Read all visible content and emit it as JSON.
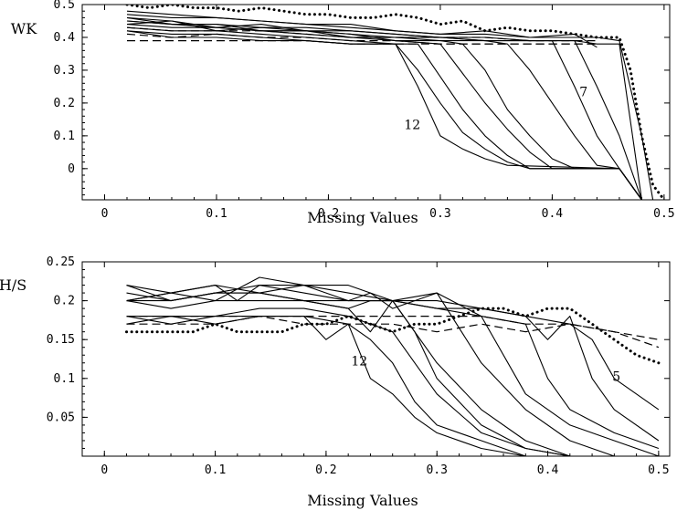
{
  "chart_data": [
    {
      "type": "line",
      "ylabel": "WK",
      "xlabel": "Missing Values",
      "xlim": [
        -0.02,
        0.505
      ],
      "ylim": [
        -0.095,
        0.5
      ],
      "xticks": [
        0,
        0.1,
        0.2,
        0.3,
        0.4,
        0.5
      ],
      "xtick_labels": [
        "0",
        "0.1",
        "0.2",
        "0.3",
        "0.4",
        "0.5"
      ],
      "yticks": [
        0,
        0.1,
        0.2,
        0.3,
        0.4,
        0.5
      ],
      "ytick_labels": [
        "0",
        "0.1",
        "0.2",
        "0.3",
        "0.4",
        "0.5"
      ],
      "annotations": [
        {
          "text": "12",
          "x": 0.275,
          "y": 0.12
        },
        {
          "text": "7",
          "x": 0.428,
          "y": 0.22
        }
      ],
      "series": [
        {
          "style": "dotted",
          "x": [
            0.02,
            0.04,
            0.06,
            0.08,
            0.1,
            0.12,
            0.14,
            0.16,
            0.18,
            0.2,
            0.22,
            0.24,
            0.26,
            0.28,
            0.3,
            0.32,
            0.34,
            0.36,
            0.38,
            0.4,
            0.42,
            0.44,
            0.46,
            0.47,
            0.48,
            0.49,
            0.5
          ],
          "y": [
            0.5,
            0.49,
            0.5,
            0.49,
            0.49,
            0.48,
            0.49,
            0.48,
            0.47,
            0.47,
            0.46,
            0.46,
            0.47,
            0.46,
            0.44,
            0.45,
            0.42,
            0.43,
            0.42,
            0.42,
            0.41,
            0.4,
            0.4,
            0.3,
            0.1,
            -0.05,
            -0.095
          ]
        },
        {
          "style": "dashed",
          "x": [
            0.02,
            0.06,
            0.1,
            0.14,
            0.18,
            0.22,
            0.26,
            0.3,
            0.34,
            0.38,
            0.42,
            0.44
          ],
          "y": [
            0.43,
            0.42,
            0.42,
            0.42,
            0.41,
            0.4,
            0.4,
            0.4,
            0.4,
            0.39,
            0.39,
            0.39
          ]
        },
        {
          "style": "dashed",
          "x": [
            0.02,
            0.06,
            0.1,
            0.14,
            0.18,
            0.22,
            0.26,
            0.3,
            0.34,
            0.38,
            0.42,
            0.44
          ],
          "y": [
            0.41,
            0.4,
            0.41,
            0.4,
            0.4,
            0.39,
            0.39,
            0.38,
            0.38,
            0.38,
            0.38,
            0.38
          ]
        },
        {
          "style": "dashed",
          "x": [
            0.02,
            0.06,
            0.1,
            0.14,
            0.18,
            0.22,
            0.26,
            0.3,
            0.34,
            0.38,
            0.42,
            0.44
          ],
          "y": [
            0.39,
            0.39,
            0.39,
            0.39,
            0.39,
            0.38,
            0.38,
            0.38,
            0.38,
            0.38,
            0.38,
            0.38
          ]
        },
        {
          "style": "solid",
          "x": [
            0.02,
            0.06,
            0.1,
            0.14,
            0.18,
            0.22,
            0.26,
            0.3,
            0.34,
            0.38,
            0.42,
            0.44,
            0.46,
            0.48,
            0.49
          ],
          "y": [
            0.47,
            0.46,
            0.46,
            0.45,
            0.44,
            0.43,
            0.42,
            0.41,
            0.41,
            0.4,
            0.4,
            0.4,
            0.39,
            0.1,
            -0.095
          ]
        },
        {
          "style": "solid",
          "x": [
            0.02,
            0.06,
            0.1,
            0.14,
            0.18,
            0.22,
            0.26,
            0.3,
            0.34,
            0.38,
            0.42,
            0.44,
            0.46,
            0.48
          ],
          "y": [
            0.45,
            0.44,
            0.44,
            0.43,
            0.43,
            0.42,
            0.41,
            0.4,
            0.4,
            0.39,
            0.39,
            0.38,
            0.38,
            -0.095
          ]
        },
        {
          "style": "solid",
          "x": [
            0.02,
            0.06,
            0.1,
            0.14,
            0.18,
            0.22,
            0.26,
            0.3,
            0.34,
            0.38,
            0.42,
            0.44
          ],
          "y": [
            0.48,
            0.47,
            0.46,
            0.45,
            0.44,
            0.44,
            0.42,
            0.41,
            0.42,
            0.4,
            0.41,
            0.37
          ]
        },
        {
          "style": "solid",
          "x": [
            0.02,
            0.06,
            0.1,
            0.14,
            0.18,
            0.22,
            0.26,
            0.3,
            0.34,
            0.38,
            0.42,
            0.44,
            0.46,
            0.48
          ],
          "y": [
            0.46,
            0.45,
            0.43,
            0.44,
            0.42,
            0.42,
            0.41,
            0.4,
            0.39,
            0.39,
            0.39,
            0.25,
            0.1,
            -0.095
          ]
        },
        {
          "style": "solid",
          "x": [
            0.02,
            0.06,
            0.1,
            0.14,
            0.18,
            0.22,
            0.26,
            0.3,
            0.34,
            0.38,
            0.4,
            0.42,
            0.44,
            0.46,
            0.48
          ],
          "y": [
            0.44,
            0.45,
            0.42,
            0.43,
            0.42,
            0.41,
            0.4,
            0.4,
            0.39,
            0.39,
            0.39,
            0.25,
            0.1,
            0,
            -0.095
          ]
        },
        {
          "style": "solid",
          "x": [
            0.02,
            0.06,
            0.1,
            0.14,
            0.18,
            0.22,
            0.26,
            0.3,
            0.34,
            0.36,
            0.38,
            0.4,
            0.42,
            0.44,
            0.46,
            0.48
          ],
          "y": [
            0.46,
            0.44,
            0.43,
            0.42,
            0.42,
            0.4,
            0.4,
            0.39,
            0.39,
            0.38,
            0.3,
            0.2,
            0.1,
            0.01,
            0,
            -0.095
          ]
        },
        {
          "style": "solid",
          "x": [
            0.02,
            0.06,
            0.1,
            0.14,
            0.18,
            0.22,
            0.26,
            0.3,
            0.32,
            0.34,
            0.36,
            0.38,
            0.4,
            0.42,
            0.46,
            0.48
          ],
          "y": [
            0.45,
            0.44,
            0.44,
            0.42,
            0.42,
            0.41,
            0.39,
            0.39,
            0.38,
            0.3,
            0.18,
            0.1,
            0.03,
            0,
            0,
            -0.095
          ]
        },
        {
          "style": "solid",
          "x": [
            0.02,
            0.06,
            0.1,
            0.14,
            0.18,
            0.22,
            0.26,
            0.3,
            0.32,
            0.34,
            0.36,
            0.38,
            0.4,
            0.46,
            0.48
          ],
          "y": [
            0.44,
            0.43,
            0.43,
            0.42,
            0.41,
            0.4,
            0.39,
            0.38,
            0.29,
            0.2,
            0.12,
            0.05,
            0,
            0,
            -0.095
          ]
        },
        {
          "style": "solid",
          "x": [
            0.02,
            0.06,
            0.1,
            0.14,
            0.18,
            0.22,
            0.26,
            0.28,
            0.3,
            0.32,
            0.34,
            0.36,
            0.38,
            0.46,
            0.48
          ],
          "y": [
            0.43,
            0.42,
            0.42,
            0.41,
            0.4,
            0.39,
            0.38,
            0.38,
            0.28,
            0.18,
            0.1,
            0.04,
            0,
            0,
            -0.095
          ]
        },
        {
          "style": "solid",
          "x": [
            0.02,
            0.06,
            0.1,
            0.14,
            0.18,
            0.22,
            0.26,
            0.28,
            0.3,
            0.32,
            0.34,
            0.36,
            0.38,
            0.46,
            0.48
          ],
          "y": [
            0.42,
            0.41,
            0.41,
            0.4,
            0.39,
            0.38,
            0.38,
            0.3,
            0.2,
            0.11,
            0.06,
            0.02,
            0,
            0,
            -0.095
          ]
        },
        {
          "style": "solid",
          "x": [
            0.02,
            0.06,
            0.1,
            0.14,
            0.18,
            0.22,
            0.26,
            0.28,
            0.3,
            0.32,
            0.34,
            0.36,
            0.46,
            0.48
          ],
          "y": [
            0.42,
            0.4,
            0.4,
            0.39,
            0.39,
            0.38,
            0.38,
            0.25,
            0.1,
            0.06,
            0.03,
            0.01,
            0,
            -0.095
          ]
        }
      ]
    },
    {
      "type": "line",
      "ylabel": "H/S",
      "xlabel": "Missing Values",
      "xlim": [
        -0.02,
        0.51
      ],
      "ylim": [
        0,
        0.25
      ],
      "xticks": [
        0,
        0.1,
        0.2,
        0.3,
        0.4,
        0.5
      ],
      "xtick_labels": [
        "0",
        "0.1",
        "0.2",
        "0.3",
        "0.4",
        "0.5"
      ],
      "yticks": [
        0.05,
        0.1,
        0.15,
        0.2,
        0.25
      ],
      "ytick_labels": [
        "0.05",
        "0.1",
        "0.15",
        "0.2",
        "0.25"
      ],
      "annotations": [
        {
          "text": "12",
          "x": 0.23,
          "y": 0.117
        },
        {
          "text": "5",
          "x": 0.462,
          "y": 0.097
        }
      ],
      "series": [
        {
          "style": "dotted",
          "x": [
            0.02,
            0.04,
            0.06,
            0.08,
            0.1,
            0.12,
            0.14,
            0.16,
            0.18,
            0.2,
            0.22,
            0.24,
            0.26,
            0.28,
            0.3,
            0.32,
            0.34,
            0.36,
            0.38,
            0.4,
            0.42,
            0.44,
            0.46,
            0.48,
            0.5
          ],
          "y": [
            0.16,
            0.16,
            0.16,
            0.16,
            0.17,
            0.16,
            0.16,
            0.16,
            0.17,
            0.17,
            0.18,
            0.17,
            0.16,
            0.17,
            0.17,
            0.18,
            0.19,
            0.19,
            0.18,
            0.19,
            0.19,
            0.17,
            0.15,
            0.13,
            0.12
          ]
        },
        {
          "style": "dashed",
          "x": [
            0.02,
            0.06,
            0.1,
            0.14,
            0.18,
            0.22,
            0.26,
            0.3,
            0.34,
            0.38,
            0.42,
            0.46,
            0.5
          ],
          "y": [
            0.17,
            0.17,
            0.17,
            0.18,
            0.17,
            0.17,
            0.17,
            0.16,
            0.17,
            0.16,
            0.17,
            0.16,
            0.14
          ]
        },
        {
          "style": "dashed",
          "x": [
            0.02,
            0.06,
            0.1,
            0.14,
            0.18,
            0.22,
            0.26,
            0.3,
            0.34,
            0.38,
            0.42,
            0.46,
            0.5
          ],
          "y": [
            0.18,
            0.18,
            0.18,
            0.18,
            0.18,
            0.18,
            0.18,
            0.18,
            0.18,
            0.17,
            0.17,
            0.16,
            0.15
          ]
        },
        {
          "style": "solid",
          "x": [
            0.02,
            0.06,
            0.1,
            0.14,
            0.18,
            0.22,
            0.26,
            0.3,
            0.34,
            0.38,
            0.42,
            0.44,
            0.46,
            0.5
          ],
          "y": [
            0.21,
            0.2,
            0.21,
            0.21,
            0.2,
            0.2,
            0.2,
            0.19,
            0.19,
            0.18,
            0.17,
            0.15,
            0.1,
            0.06
          ]
        },
        {
          "style": "solid",
          "x": [
            0.02,
            0.06,
            0.1,
            0.14,
            0.18,
            0.22,
            0.26,
            0.3,
            0.34,
            0.38,
            0.4,
            0.42,
            0.44,
            0.46,
            0.5
          ],
          "y": [
            0.2,
            0.21,
            0.22,
            0.21,
            0.22,
            0.21,
            0.2,
            0.2,
            0.19,
            0.18,
            0.15,
            0.18,
            0.1,
            0.06,
            0.02
          ]
        },
        {
          "style": "solid",
          "x": [
            0.02,
            0.06,
            0.1,
            0.12,
            0.14,
            0.18,
            0.22,
            0.26,
            0.3,
            0.34,
            0.38,
            0.4,
            0.42,
            0.46,
            0.5
          ],
          "y": [
            0.22,
            0.21,
            0.22,
            0.2,
            0.22,
            0.22,
            0.2,
            0.2,
            0.19,
            0.18,
            0.17,
            0.1,
            0.06,
            0.03,
            0.01
          ]
        },
        {
          "style": "solid",
          "x": [
            0.02,
            0.06,
            0.1,
            0.14,
            0.18,
            0.22,
            0.26,
            0.3,
            0.34,
            0.38,
            0.42,
            0.46,
            0.5
          ],
          "y": [
            0.2,
            0.21,
            0.2,
            0.23,
            0.22,
            0.22,
            0.2,
            0.21,
            0.18,
            0.08,
            0.04,
            0.02,
            0
          ]
        },
        {
          "style": "solid",
          "x": [
            0.02,
            0.06,
            0.1,
            0.14,
            0.18,
            0.22,
            0.24,
            0.26,
            0.3,
            0.34,
            0.38,
            0.42,
            0.46,
            0.5
          ],
          "y": [
            0.22,
            0.2,
            0.21,
            0.22,
            0.21,
            0.2,
            0.21,
            0.19,
            0.21,
            0.12,
            0.06,
            0.02,
            0,
            0
          ]
        },
        {
          "style": "solid",
          "x": [
            0.02,
            0.06,
            0.1,
            0.14,
            0.18,
            0.22,
            0.24,
            0.26,
            0.3,
            0.34,
            0.38,
            0.42,
            0.46,
            0.5
          ],
          "y": [
            0.2,
            0.2,
            0.21,
            0.21,
            0.2,
            0.19,
            0.2,
            0.2,
            0.12,
            0.06,
            0.02,
            0,
            0,
            0
          ]
        },
        {
          "style": "solid",
          "x": [
            0.02,
            0.06,
            0.1,
            0.14,
            0.18,
            0.22,
            0.24,
            0.26,
            0.28,
            0.3,
            0.34,
            0.38,
            0.42,
            0.46,
            0.5
          ],
          "y": [
            0.2,
            0.19,
            0.2,
            0.2,
            0.2,
            0.19,
            0.16,
            0.2,
            0.16,
            0.1,
            0.04,
            0.01,
            0,
            0,
            0
          ]
        },
        {
          "style": "solid",
          "x": [
            0.02,
            0.06,
            0.1,
            0.14,
            0.18,
            0.22,
            0.26,
            0.28,
            0.3,
            0.34,
            0.38,
            0.42,
            0.46,
            0.5
          ],
          "y": [
            0.18,
            0.18,
            0.18,
            0.19,
            0.19,
            0.18,
            0.16,
            0.12,
            0.08,
            0.03,
            0.01,
            0,
            0,
            0
          ]
        },
        {
          "style": "solid",
          "x": [
            0.02,
            0.06,
            0.1,
            0.14,
            0.18,
            0.22,
            0.24,
            0.26,
            0.28,
            0.3,
            0.34,
            0.38,
            0.42,
            0.46,
            0.5
          ],
          "y": [
            0.18,
            0.17,
            0.18,
            0.18,
            0.18,
            0.17,
            0.15,
            0.12,
            0.07,
            0.04,
            0.02,
            0,
            0,
            0,
            0
          ]
        },
        {
          "style": "solid",
          "x": [
            0.02,
            0.06,
            0.1,
            0.14,
            0.18,
            0.2,
            0.22,
            0.24,
            0.26,
            0.28,
            0.3,
            0.34,
            0.38,
            0.42,
            0.46,
            0.5
          ],
          "y": [
            0.17,
            0.18,
            0.17,
            0.18,
            0.18,
            0.15,
            0.17,
            0.1,
            0.08,
            0.05,
            0.03,
            0.01,
            0,
            0,
            0,
            0
          ]
        }
      ]
    }
  ]
}
